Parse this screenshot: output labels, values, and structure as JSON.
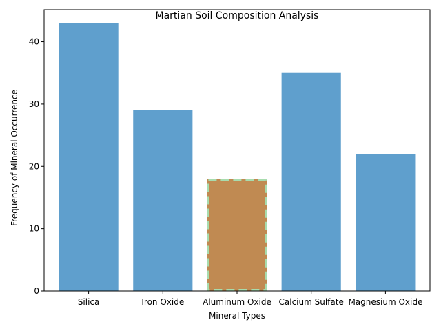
{
  "chart_data": {
    "type": "bar",
    "title": "Martian Soil Composition Analysis",
    "xlabel": "Mineral Types",
    "ylabel": "Frequency of Mineral Occurrence",
    "categories": [
      "Silica",
      "Iron Oxide",
      "Aluminum Oxide",
      "Calcium Sulfate",
      "Magnesium Oxide"
    ],
    "values": [
      43,
      29,
      18,
      35,
      22
    ],
    "ylim": [
      0,
      45.15
    ],
    "yticks": [
      0,
      10,
      20,
      30,
      40
    ],
    "grid": false,
    "legend": "none",
    "highlight_index": 2,
    "colors": {
      "bar": "#5f9fcd",
      "highlight_bar": "#c08a52",
      "highlight_outline": "#a8dcae",
      "axis": "#000000"
    }
  }
}
